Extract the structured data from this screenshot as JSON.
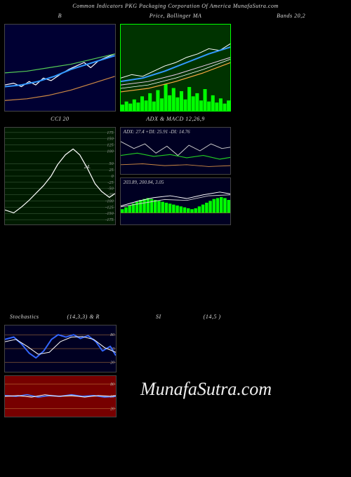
{
  "header": {
    "text": "Common Indicators PKG Packaging Corporation Of America MunafaSutra.com"
  },
  "watermark": "MunafaSutra.com",
  "row1": {
    "left": {
      "title": "B",
      "background": "#000033",
      "series": [
        {
          "color": "#ffffff",
          "width": 1.2,
          "points": [
            [
              0,
              70
            ],
            [
              8,
              68
            ],
            [
              15,
              72
            ],
            [
              22,
              66
            ],
            [
              28,
              70
            ],
            [
              35,
              62
            ],
            [
              42,
              65
            ],
            [
              50,
              58
            ],
            [
              58,
              52
            ],
            [
              65,
              48
            ],
            [
              72,
              44
            ],
            [
              78,
              50
            ],
            [
              85,
              42
            ],
            [
              92,
              38
            ],
            [
              100,
              34
            ]
          ]
        },
        {
          "color": "#3399ff",
          "width": 2.0,
          "points": [
            [
              0,
              72
            ],
            [
              15,
              70
            ],
            [
              30,
              66
            ],
            [
              45,
              60
            ],
            [
              60,
              52
            ],
            [
              75,
              46
            ],
            [
              90,
              40
            ],
            [
              100,
              36
            ]
          ]
        },
        {
          "color": "#55cc55",
          "width": 1.2,
          "points": [
            [
              0,
              56
            ],
            [
              20,
              54
            ],
            [
              40,
              50
            ],
            [
              60,
              46
            ],
            [
              80,
              40
            ],
            [
              100,
              34
            ]
          ]
        },
        {
          "color": "#cc8844",
          "width": 1.2,
          "points": [
            [
              0,
              88
            ],
            [
              20,
              86
            ],
            [
              40,
              82
            ],
            [
              60,
              76
            ],
            [
              80,
              68
            ],
            [
              100,
              60
            ]
          ]
        }
      ]
    },
    "mid": {
      "title": "Price, Bollinger MA",
      "background": "#003300",
      "border": "#00ff00",
      "volume_color": "#00ff00",
      "volume": [
        12,
        18,
        14,
        22,
        16,
        28,
        20,
        34,
        18,
        40,
        24,
        52,
        30,
        44,
        26,
        38,
        22,
        46,
        28,
        34,
        20,
        42,
        18,
        30,
        16,
        24,
        14,
        20
      ],
      "series": [
        {
          "color": "#ffffff",
          "width": 1.0,
          "points": [
            [
              0,
              62
            ],
            [
              10,
              58
            ],
            [
              20,
              60
            ],
            [
              30,
              54
            ],
            [
              40,
              48
            ],
            [
              50,
              44
            ],
            [
              60,
              38
            ],
            [
              70,
              34
            ],
            [
              80,
              28
            ],
            [
              90,
              30
            ],
            [
              100,
              22
            ]
          ]
        },
        {
          "color": "#3399ff",
          "width": 2.0,
          "points": [
            [
              0,
              66
            ],
            [
              20,
              62
            ],
            [
              40,
              54
            ],
            [
              60,
              44
            ],
            [
              80,
              34
            ],
            [
              100,
              26
            ]
          ]
        },
        {
          "color": "#eeccee",
          "width": 1.0,
          "points": [
            [
              0,
              70
            ],
            [
              25,
              66
            ],
            [
              50,
              58
            ],
            [
              75,
              48
            ],
            [
              100,
              38
            ]
          ]
        },
        {
          "color": "#ffaa44",
          "width": 1.2,
          "points": [
            [
              0,
              78
            ],
            [
              25,
              74
            ],
            [
              50,
              66
            ],
            [
              75,
              56
            ],
            [
              100,
              44
            ]
          ]
        },
        {
          "color": "#ffffff",
          "width": 0.8,
          "points": [
            [
              0,
              74
            ],
            [
              25,
              70
            ],
            [
              50,
              62
            ],
            [
              75,
              52
            ],
            [
              100,
              40
            ]
          ]
        }
      ]
    },
    "right": {
      "title": "Bands 20,2",
      "empty": true
    }
  },
  "row2": {
    "left": {
      "title": "CCI 20",
      "background": "#001a00",
      "grid_color": "#446644",
      "grid_levels": [
        175,
        150,
        125,
        100,
        50,
        25,
        0,
        -25,
        -50,
        -75,
        -100,
        -125,
        -150,
        -175
      ],
      "annotation": "24.",
      "series": [
        {
          "color": "#ffffff",
          "width": 1.2,
          "points": [
            [
              0,
              85
            ],
            [
              8,
              88
            ],
            [
              15,
              82
            ],
            [
              22,
              75
            ],
            [
              28,
              68
            ],
            [
              35,
              60
            ],
            [
              42,
              50
            ],
            [
              48,
              38
            ],
            [
              55,
              28
            ],
            [
              62,
              22
            ],
            [
              68,
              28
            ],
            [
              75,
              42
            ],
            [
              82,
              58
            ],
            [
              88,
              66
            ],
            [
              95,
              72
            ],
            [
              100,
              68
            ]
          ]
        }
      ]
    },
    "right": {
      "title": "ADX & MACD 12,26,9",
      "top": {
        "label": "ADX: 27.4 +DI: 25.91 -DI: 14.76",
        "background": "#000022",
        "series": [
          {
            "color": "#cccccc",
            "width": 1.0,
            "points": [
              [
                0,
                30
              ],
              [
                12,
                45
              ],
              [
                22,
                35
              ],
              [
                32,
                55
              ],
              [
                42,
                40
              ],
              [
                52,
                60
              ],
              [
                62,
                38
              ],
              [
                72,
                50
              ],
              [
                82,
                35
              ],
              [
                92,
                45
              ],
              [
                100,
                42
              ]
            ]
          },
          {
            "color": "#22cc22",
            "width": 1.2,
            "points": [
              [
                0,
                60
              ],
              [
                15,
                55
              ],
              [
                30,
                62
              ],
              [
                45,
                58
              ],
              [
                60,
                65
              ],
              [
                75,
                60
              ],
              [
                90,
                68
              ],
              [
                100,
                64
              ]
            ]
          },
          {
            "color": "#cc8844",
            "width": 1.0,
            "points": [
              [
                0,
                80
              ],
              [
                20,
                78
              ],
              [
                40,
                82
              ],
              [
                60,
                80
              ],
              [
                80,
                84
              ],
              [
                100,
                82
              ]
            ]
          }
        ]
      },
      "bottom": {
        "label": "203.89, 200.84, 3.05",
        "background": "#000022",
        "hist_color": "#00ff00",
        "zero_color": "#cc4444",
        "histogram": [
          8,
          12,
          16,
          20,
          24,
          28,
          30,
          32,
          30,
          28,
          26,
          24,
          22,
          20,
          18,
          16,
          14,
          12,
          10,
          8,
          10,
          14,
          18,
          22,
          26,
          30,
          32,
          34,
          32,
          28
        ],
        "series": [
          {
            "color": "#ffffff",
            "width": 1.0,
            "points": [
              [
                0,
                60
              ],
              [
                15,
                50
              ],
              [
                30,
                42
              ],
              [
                45,
                38
              ],
              [
                60,
                44
              ],
              [
                75,
                36
              ],
              [
                90,
                30
              ],
              [
                100,
                34
              ]
            ]
          },
          {
            "color": "#cccccc",
            "width": 1.0,
            "points": [
              [
                0,
                62
              ],
              [
                20,
                54
              ],
              [
                40,
                46
              ],
              [
                60,
                48
              ],
              [
                80,
                38
              ],
              [
                100,
                36
              ]
            ]
          }
        ]
      }
    }
  },
  "row3": {
    "left": {
      "title_left": "Stochastics",
      "title_mid": "(14,3,3) & R",
      "title_rsi": "SI",
      "title_right": "(14,5                    )",
      "top": {
        "background": "#000022",
        "grid_color": "#cc8844",
        "grid_levels": [
          80,
          50,
          20
        ],
        "series": [
          {
            "color": "#3366ff",
            "width": 2.0,
            "points": [
              [
                0,
                30
              ],
              [
                8,
                25
              ],
              [
                15,
                40
              ],
              [
                22,
                60
              ],
              [
                28,
                70
              ],
              [
                35,
                55
              ],
              [
                42,
                30
              ],
              [
                48,
                20
              ],
              [
                55,
                25
              ],
              [
                62,
                20
              ],
              [
                68,
                28
              ],
              [
                75,
                22
              ],
              [
                82,
                35
              ],
              [
                88,
                55
              ],
              [
                95,
                45
              ],
              [
                100,
                65
              ]
            ]
          },
          {
            "color": "#ffffff",
            "width": 1.0,
            "points": [
              [
                0,
                35
              ],
              [
                10,
                30
              ],
              [
                20,
                45
              ],
              [
                30,
                62
              ],
              [
                40,
                58
              ],
              [
                50,
                35
              ],
              [
                60,
                25
              ],
              [
                70,
                24
              ],
              [
                80,
                30
              ],
              [
                90,
                48
              ],
              [
                100,
                58
              ]
            ]
          }
        ]
      },
      "bottom": {
        "background": "#770000",
        "grid_color": "#cc8844",
        "grid_levels": [
          80,
          50,
          20
        ],
        "series": [
          {
            "color": "#4477ff",
            "width": 1.8,
            "points": [
              [
                0,
                48
              ],
              [
                10,
                50
              ],
              [
                20,
                46
              ],
              [
                30,
                52
              ],
              [
                40,
                48
              ],
              [
                50,
                50
              ],
              [
                60,
                46
              ],
              [
                70,
                50
              ],
              [
                80,
                48
              ],
              [
                90,
                52
              ],
              [
                100,
                50
              ]
            ]
          },
          {
            "color": "#ffffff",
            "width": 1.0,
            "points": [
              [
                0,
                50
              ],
              [
                12,
                48
              ],
              [
                24,
                52
              ],
              [
                36,
                46
              ],
              [
                48,
                50
              ],
              [
                60,
                48
              ],
              [
                72,
                52
              ],
              [
                84,
                48
              ],
              [
                96,
                50
              ],
              [
                100,
                48
              ]
            ]
          }
        ]
      }
    }
  }
}
